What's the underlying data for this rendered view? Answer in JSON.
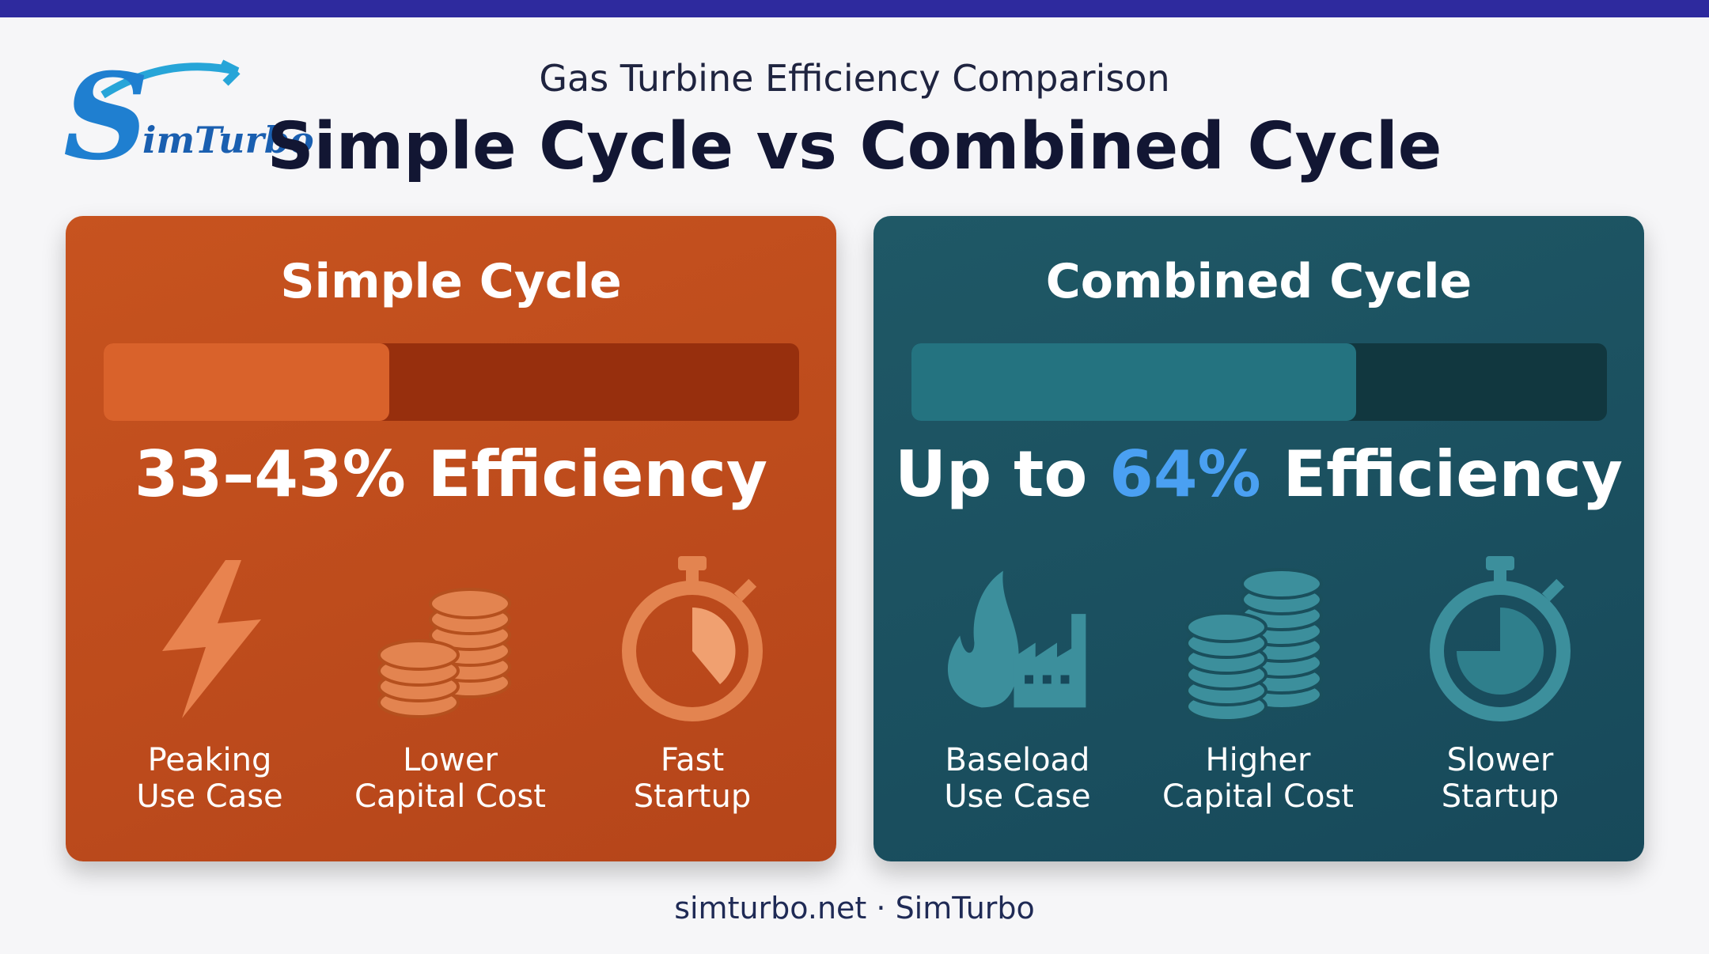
{
  "header": {
    "logo": {
      "initial": "S",
      "rest": "imTurbo"
    },
    "subtitle": "Gas Turbine Efficiency Comparison",
    "title": "Simple Cycle vs Combined Cycle"
  },
  "panels": [
    {
      "title": "Simple Cycle",
      "efficiency": {
        "text": "33–43% Efficiency"
      },
      "features": [
        {
          "lines": [
            "Peaking",
            "Use Case"
          ]
        },
        {
          "lines": [
            "Lower",
            "Capital Cost"
          ]
        },
        {
          "lines": [
            "Fast",
            "Startup"
          ]
        }
      ]
    },
    {
      "title": "Combined Cycle",
      "efficiency": {
        "prefix": "Up to ",
        "highlight": "64%",
        "suffix": " Efficiency"
      },
      "features": [
        {
          "lines": [
            "Baseload",
            "Use Case"
          ]
        },
        {
          "lines": [
            "Higher",
            "Capital Cost"
          ]
        },
        {
          "lines": [
            "Slower",
            "Startup"
          ]
        }
      ]
    }
  ],
  "footer": "simturbo.net · SimTurbo"
}
